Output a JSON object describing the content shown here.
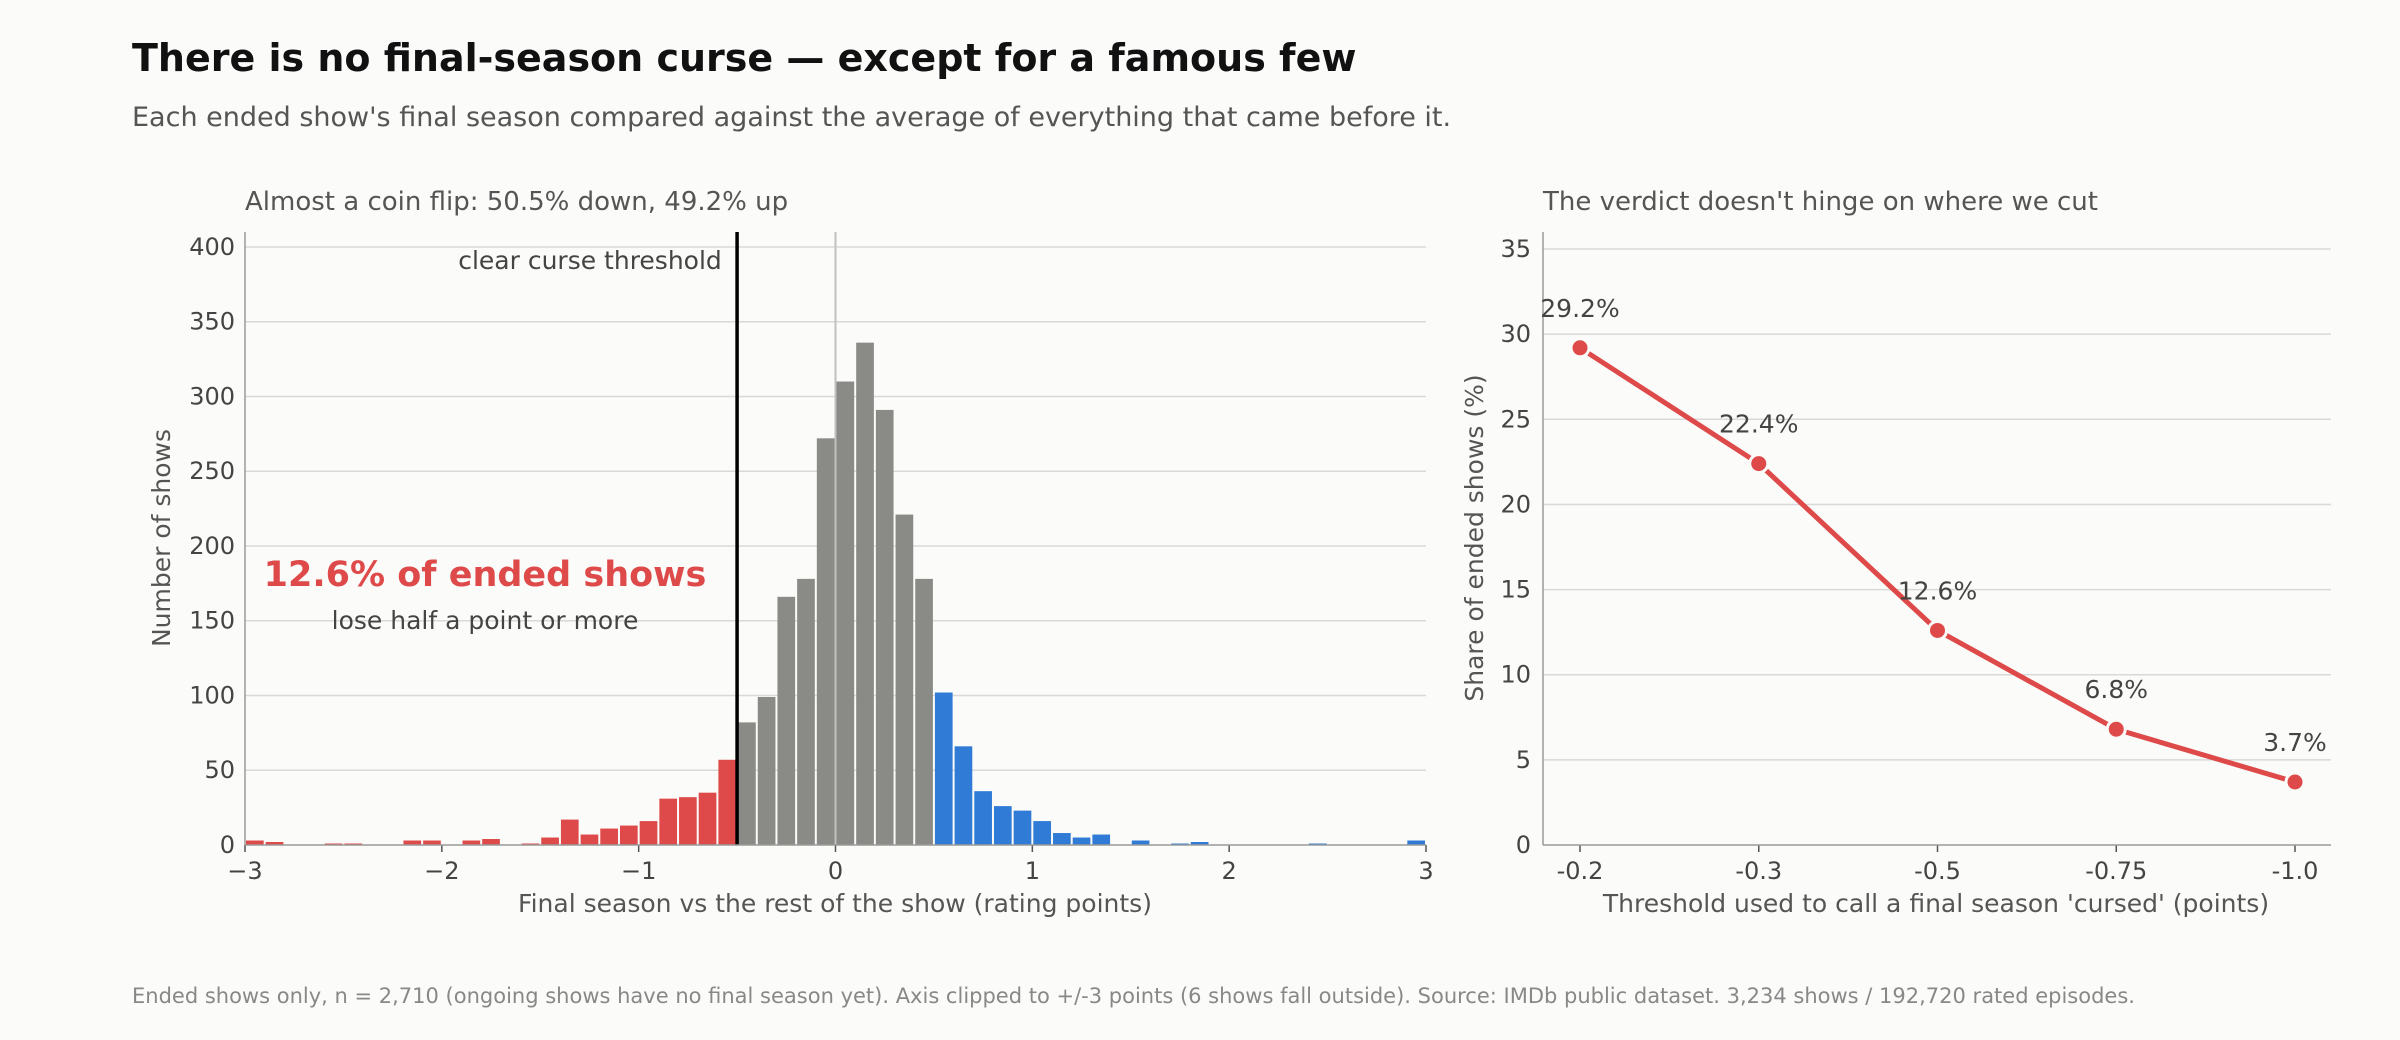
{
  "title": "There is no final-season curse — except for a famous few",
  "subtitle": "Each ended show's final season compared against the average of everything that came before it.",
  "footer": "Ended shows only, n = 2,710 (ongoing shows have no final season yet). Axis clipped to +/-3 points (6 shows fall outside). Source: IMDb public dataset. 3,234 shows / 192,720 rated episodes.",
  "colors": {
    "cursed": "#de4a4a",
    "neutral": "#8a8a86",
    "improved": "#2f7bd6",
    "threshold_line": "#000000",
    "zero_line": "#c0c0c0"
  },
  "chart_data": [
    {
      "type": "bar",
      "subtype": "histogram",
      "title": "Almost a coin flip: 50.5% down, 49.2% up",
      "xlabel": "Final season vs the rest of the show (rating points)",
      "ylabel": "Number of shows",
      "xlim": [
        -3,
        3
      ],
      "ylim": [
        0,
        410
      ],
      "xticks": [
        -3,
        -2,
        -1,
        0,
        1,
        2,
        3
      ],
      "xtick_labels": [
        "−3",
        "−2",
        "−1",
        "0",
        "1",
        "2",
        "3"
      ],
      "yticks": [
        0,
        50,
        100,
        150,
        200,
        250,
        300,
        350,
        400
      ],
      "grid": "horizontal",
      "bin_width": 0.1,
      "bin_start": -3.0,
      "values": [
        3,
        2,
        0,
        0,
        1,
        1,
        0,
        0,
        3,
        3,
        0,
        3,
        4,
        0,
        1,
        5,
        17,
        7,
        11,
        13,
        16,
        31,
        32,
        35,
        57,
        82,
        99,
        166,
        178,
        272,
        310,
        336,
        291,
        221,
        178,
        102,
        66,
        36,
        26,
        23,
        16,
        8,
        5,
        7,
        0,
        3,
        0,
        1,
        2,
        0,
        0,
        0,
        0,
        0,
        1,
        0,
        0,
        0,
        0,
        3
      ],
      "color_groups": [
        {
          "name": "cursed",
          "range": [
            -3.0,
            -0.5
          ]
        },
        {
          "name": "neutral",
          "range": [
            -0.5,
            0.5
          ]
        },
        {
          "name": "improved",
          "range": [
            0.5,
            3.0
          ]
        }
      ],
      "threshold": -0.5,
      "threshold_label": "clear curse threshold",
      "annotation_main": "12.6% of ended shows",
      "annotation_sub": "lose half a point or more"
    },
    {
      "type": "line",
      "title": "The verdict doesn't hinge on where we cut",
      "xlabel": "Threshold used to call a final season 'cursed' (points)",
      "ylabel": "Share of ended shows (%)",
      "categories": [
        "-0.2",
        "-0.3",
        "-0.5",
        "-0.75",
        "-1.0"
      ],
      "values": [
        29.2,
        22.4,
        12.6,
        6.8,
        3.7
      ],
      "data_labels": [
        "29.2%",
        "22.4%",
        "12.6%",
        "6.8%",
        "3.7%"
      ],
      "ylim": [
        0,
        36
      ],
      "yticks": [
        0,
        5,
        10,
        15,
        20,
        25,
        30,
        35
      ],
      "grid": "horizontal"
    }
  ]
}
